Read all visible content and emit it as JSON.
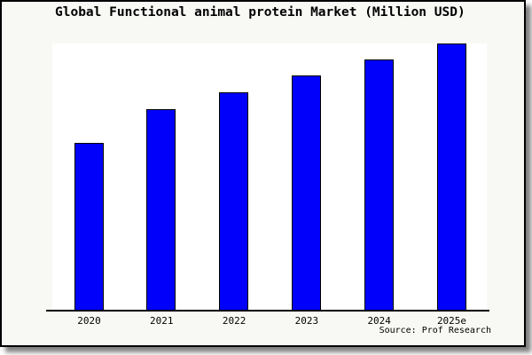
{
  "window": {
    "title": "Global Functional animal protein Market (Million USD)"
  },
  "chart_data": {
    "type": "bar",
    "title": "Global Functional animal protein Market (Million USD)",
    "categories": [
      "2020",
      "2021",
      "2022",
      "2023",
      "2024",
      "2025e"
    ],
    "series": [
      {
        "name": "Global Functional animal protein Market",
        "values": [
          62.5,
          75.0,
          81.3,
          87.7,
          93.8,
          99.7
        ]
      }
    ],
    "value_scale_note": "y-axis has no tick labels; values estimated as percent of plot full-scale (2025e bar ~ full height)",
    "xlabel": "",
    "ylabel": "",
    "ylim": [
      0,
      100
    ],
    "grid": false,
    "legend": false,
    "source": "Source: Prof Research",
    "bar_color": "#0000fb",
    "bar_edge_color": "#000000"
  },
  "colors": {
    "window_background": "#f8f8f5",
    "plot_background": "#ffffff",
    "frame_border": "#000000",
    "text": "#000000"
  }
}
